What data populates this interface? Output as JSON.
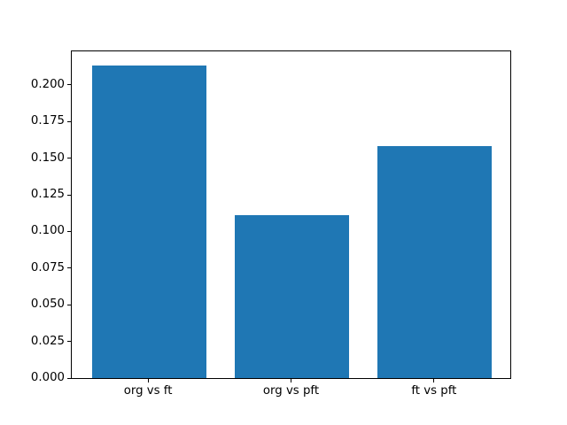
{
  "figure": {
    "background": "#ffffff"
  },
  "chart_data": {
    "type": "bar",
    "title": "",
    "xlabel": "",
    "ylabel": "",
    "categories": [
      "org vs ft",
      "org vs pft",
      "ft vs pft"
    ],
    "values": [
      0.213,
      0.111,
      0.158
    ],
    "bar_color": "#1f77b4",
    "bar_width": 0.8,
    "xlim": [
      -0.54,
      2.54
    ],
    "ylim": [
      0,
      0.2235
    ],
    "yticks": [
      0.0,
      0.025,
      0.05,
      0.075,
      0.1,
      0.125,
      0.15,
      0.175,
      0.2
    ],
    "ytick_labels": [
      "0.000",
      "0.025",
      "0.050",
      "0.075",
      "0.100",
      "0.125",
      "0.150",
      "0.175",
      "0.200"
    ],
    "grid": false,
    "legend": null,
    "spine_color": "#000000",
    "text_color": "#000000"
  }
}
